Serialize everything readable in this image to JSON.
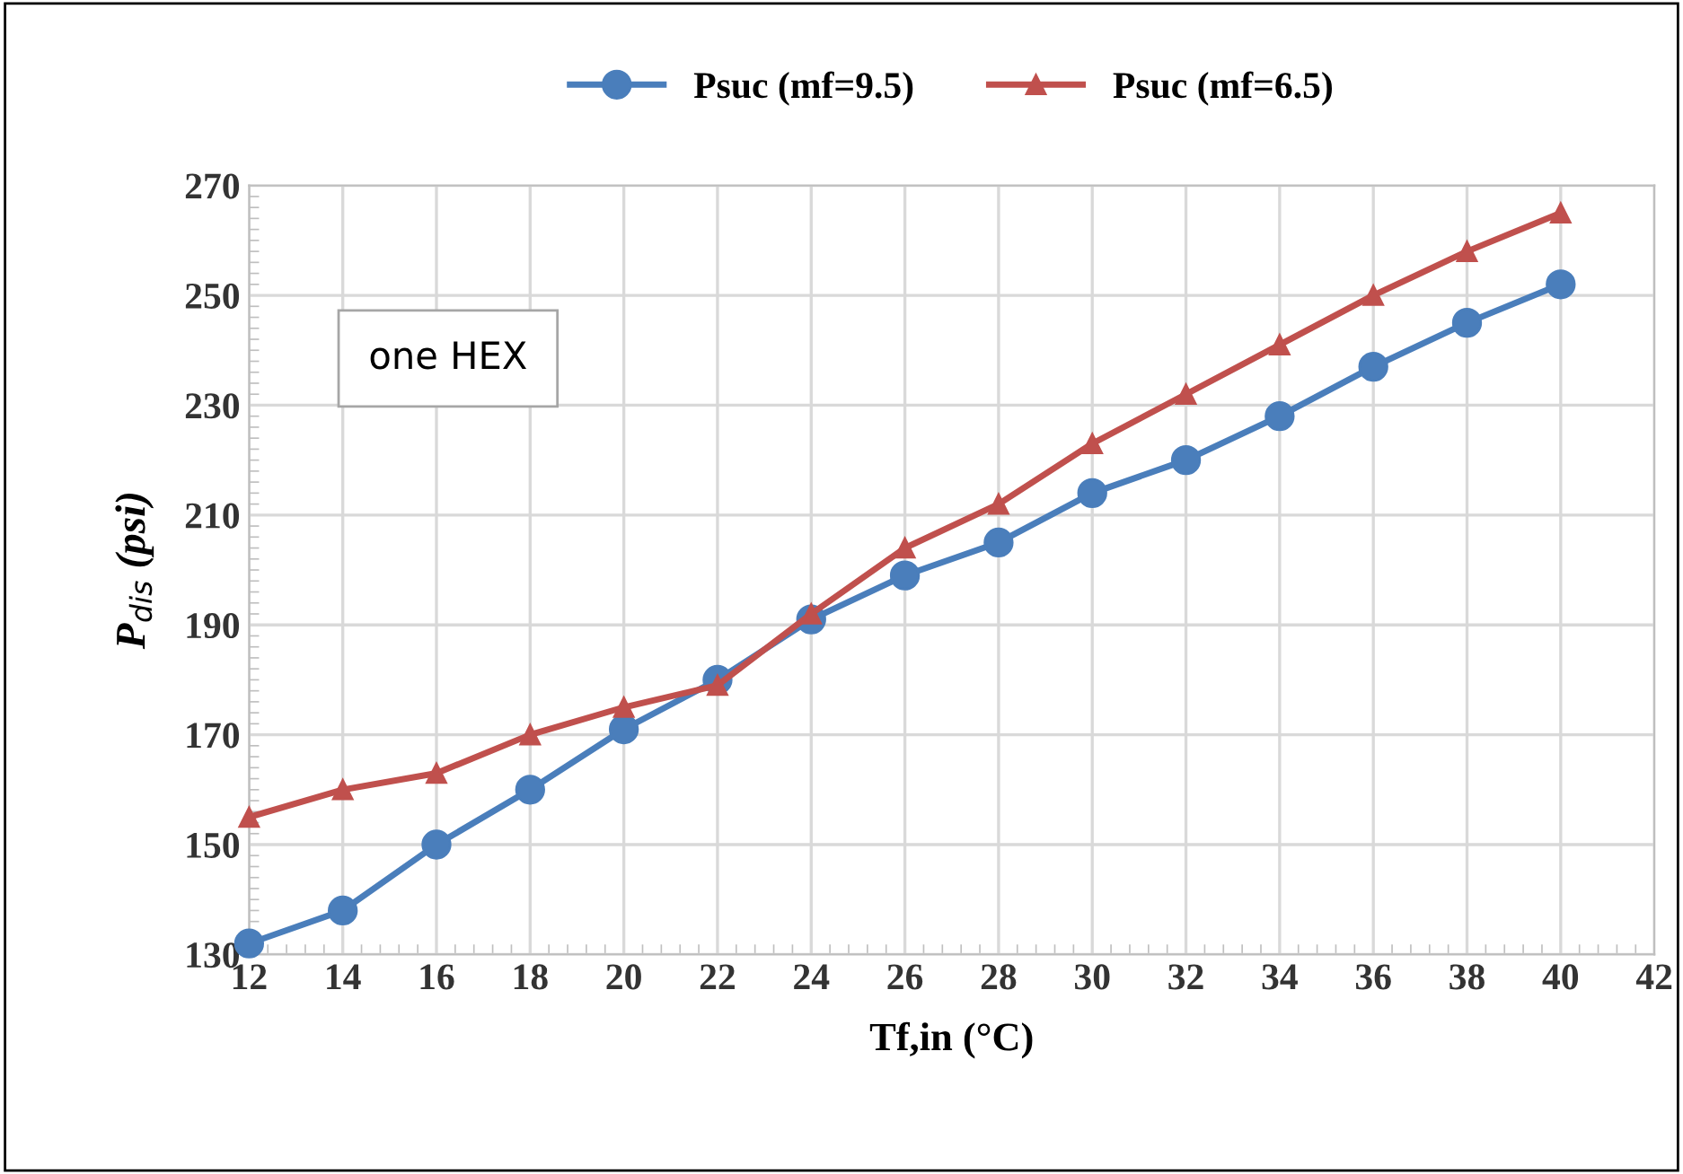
{
  "chart_data": {
    "type": "line",
    "xlabel": "Tf,in (°C)",
    "ylabel": "P$_{dis}$ (psi)",
    "annotations": [
      "one HEX"
    ],
    "x": [
      12,
      14,
      16,
      18,
      20,
      22,
      24,
      26,
      28,
      30,
      32,
      34,
      36,
      38,
      40
    ],
    "series": [
      {
        "name": "Psuc (mf=9.5)",
        "color": "#4a7ebb",
        "marker": "circle",
        "values": [
          132,
          138,
          150,
          160,
          171,
          180,
          191,
          199,
          205,
          214,
          220,
          228,
          237,
          245,
          252
        ]
      },
      {
        "name": "Psuc (mf=6.5)",
        "color": "#c0504d",
        "marker": "triangle",
        "values": [
          155,
          160,
          163,
          170,
          175,
          179,
          192,
          204,
          212,
          223,
          232,
          241,
          250,
          258,
          265
        ]
      }
    ],
    "xlim": [
      12,
      42
    ],
    "xticks": [
      12,
      14,
      16,
      18,
      20,
      22,
      24,
      26,
      28,
      30,
      32,
      34,
      36,
      38,
      40,
      42
    ],
    "ylim": [
      130,
      270
    ],
    "yticks": [
      130,
      150,
      170,
      190,
      210,
      230,
      250,
      270
    ],
    "grid": true,
    "legend": "top",
    "line_style": "solid"
  }
}
